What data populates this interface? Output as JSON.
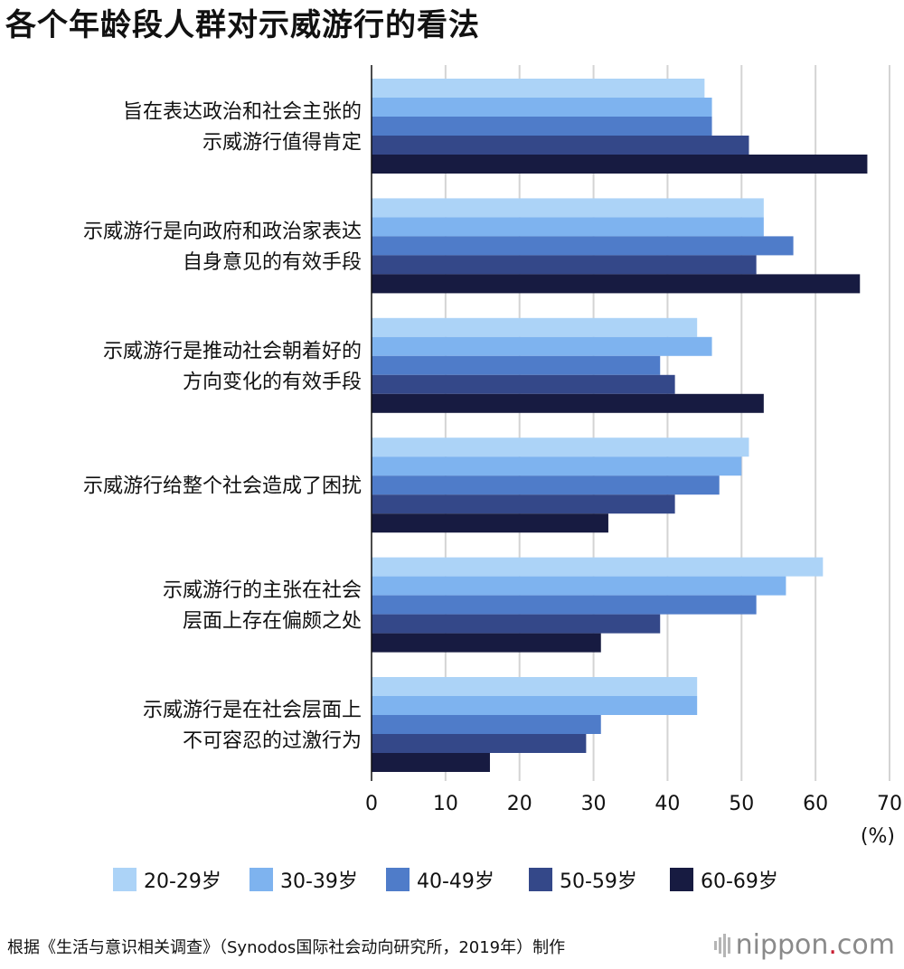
{
  "title": "各个年龄段人群对示威游行的看法",
  "source": "根据《生活与意识相关调查》（Synodos国际社会动向研究所，2019年）制作",
  "brand": {
    "name": "nippon",
    "dot": ".",
    "tld": "com"
  },
  "colors": [
    "#acd3f7",
    "#7eb3ef",
    "#4f7cc9",
    "#344889",
    "#171b41"
  ],
  "chart_data": {
    "type": "bar",
    "orientation": "horizontal",
    "categories": [
      [
        "旨在表达政治和社会主张的",
        "示威游行值得肯定"
      ],
      [
        "示威游行是向政府和政治家表达",
        "自身意见的有效手段"
      ],
      [
        "示威游行是推动社会朝着好的",
        "方向变化的有效手段"
      ],
      [
        "示威游行给整个社会造成了困扰"
      ],
      [
        "示威游行的主张在社会",
        "层面上存在偏颇之处"
      ],
      [
        "示威游行是在社会层面上",
        "不可容忍的过激行为"
      ]
    ],
    "series": [
      {
        "name": "20-29岁",
        "values": [
          45,
          53,
          44,
          51,
          61,
          44
        ]
      },
      {
        "name": "30-39岁",
        "values": [
          46,
          53,
          46,
          50,
          56,
          44
        ]
      },
      {
        "name": "40-49岁",
        "values": [
          46,
          57,
          39,
          47,
          52,
          31
        ]
      },
      {
        "name": "50-59岁",
        "values": [
          51,
          52,
          41,
          41,
          39,
          29
        ]
      },
      {
        "name": "60-69岁",
        "values": [
          67,
          66,
          53,
          32,
          31,
          16
        ]
      }
    ],
    "xlim": [
      0,
      70
    ],
    "xticks": [
      0,
      10,
      20,
      30,
      40,
      50,
      60,
      70
    ],
    "xunit": "(%)",
    "grid": true,
    "legend_position": "bottom"
  }
}
